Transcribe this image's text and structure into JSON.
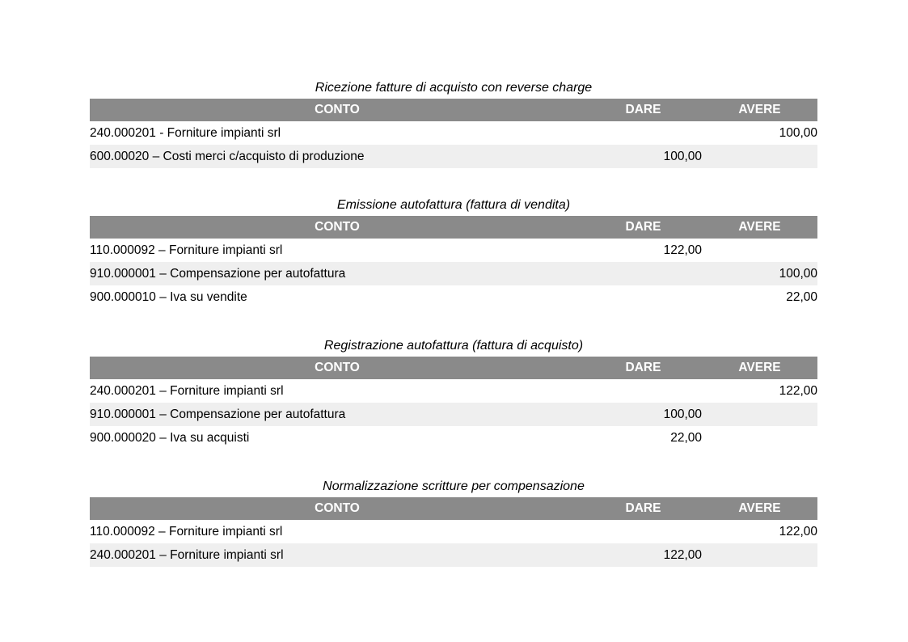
{
  "colors": {
    "page_background": "#ffffff",
    "header_background": "#8a8a8a",
    "header_text": "#ffffff",
    "alt_row_background": "#efefef",
    "body_text": "#000000"
  },
  "columns": {
    "conto": "CONTO",
    "dare": "DARE",
    "avere": "AVERE"
  },
  "tables": [
    {
      "title": "Ricezione fatture di acquisto con reverse charge",
      "rows": [
        {
          "conto": "240.000201 - Forniture impianti srl",
          "dare": "",
          "avere": "100,00"
        },
        {
          "conto": "600.00020 – Costi merci c/acquisto di produzione",
          "dare": "100,00",
          "avere": ""
        }
      ]
    },
    {
      "title": "Emissione autofattura (fattura di vendita)",
      "rows": [
        {
          "conto": "110.000092 – Forniture impianti srl",
          "dare": "122,00",
          "avere": ""
        },
        {
          "conto": "910.000001 – Compensazione per autofattura",
          "dare": "",
          "avere": "100,00"
        },
        {
          "conto": "900.000010 – Iva su vendite",
          "dare": "",
          "avere": "22,00"
        }
      ]
    },
    {
      "title": "Registrazione autofattura (fattura di acquisto)",
      "rows": [
        {
          "conto": "240.000201 – Forniture impianti srl",
          "dare": "",
          "avere": "122,00"
        },
        {
          "conto": "910.000001 – Compensazione per autofattura",
          "dare": "100,00",
          "avere": ""
        },
        {
          "conto": "900.000020 – Iva su acquisti",
          "dare": "22,00",
          "avere": ""
        }
      ]
    },
    {
      "title": "Normalizzazione scritture per compensazione",
      "rows": [
        {
          "conto": "110.000092 – Forniture impianti srl",
          "dare": "",
          "avere": "122,00"
        },
        {
          "conto": "240.000201 – Forniture impianti srl",
          "dare": "122,00",
          "avere": ""
        }
      ]
    }
  ]
}
